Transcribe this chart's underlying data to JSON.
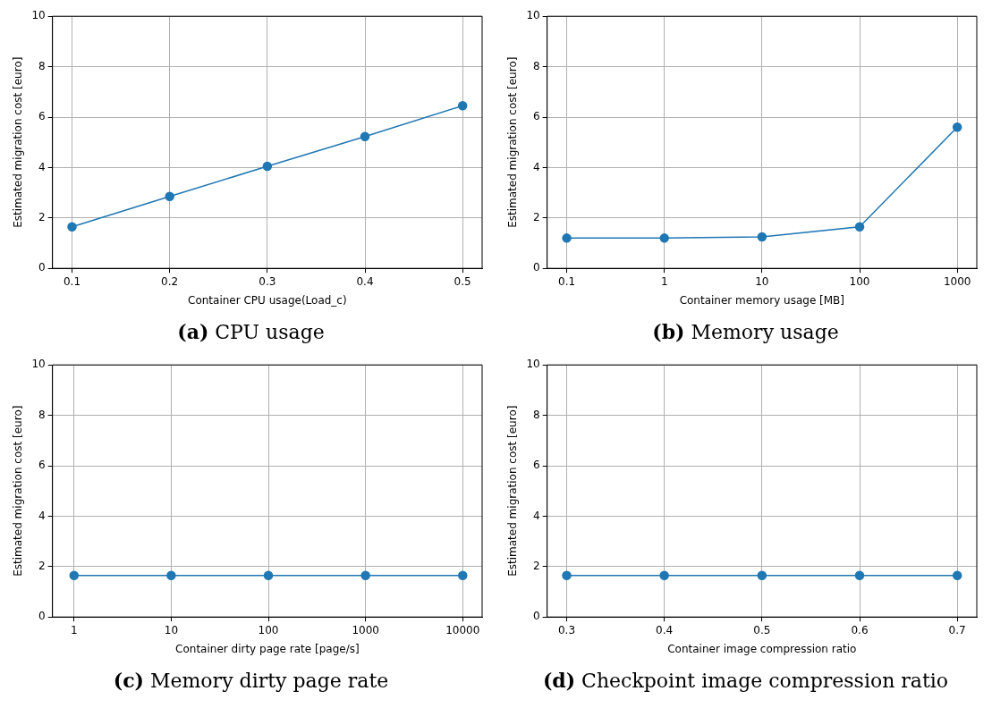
{
  "chart_data": [
    {
      "type": "line",
      "x": [
        0.1,
        0.2,
        0.3,
        0.4,
        0.5
      ],
      "values": [
        1.65,
        2.85,
        4.05,
        5.23,
        6.45
      ],
      "color": "#1f77b4",
      "marker": "circle",
      "xlabel": "Container CPU usage(Load_c)",
      "ylabel": "Estimated migration cost [euro]",
      "xlim": [
        0.08,
        0.52
      ],
      "xticks": [
        0.1,
        0.2,
        0.3,
        0.4,
        0.5
      ],
      "ylim": [
        0,
        10
      ],
      "yticks": [
        0,
        2,
        4,
        6,
        8,
        10
      ],
      "grid": true,
      "legend": false,
      "annotations": [
        "(a) CPU usage"
      ]
    },
    {
      "type": "line",
      "x": [
        0.1,
        1,
        10,
        100,
        1000
      ],
      "values": [
        1.2,
        1.2,
        1.25,
        1.65,
        5.6
      ],
      "color": "#1f77b4",
      "marker": "circle",
      "log": "x",
      "xlabel": "Container memory usage [MB]",
      "ylabel": "Estimated migration cost [euro]",
      "xlim": [
        0.063,
        1585
      ],
      "xticks": [
        0.1,
        1,
        10,
        100,
        1000
      ],
      "ylim": [
        0,
        10
      ],
      "yticks": [
        0,
        2,
        4,
        6,
        8,
        10
      ],
      "grid": true,
      "legend": false,
      "annotations": [
        "(b) Memory usage"
      ]
    },
    {
      "type": "line",
      "x": [
        1,
        10,
        100,
        1000,
        10000
      ],
      "values": [
        1.65,
        1.65,
        1.65,
        1.65,
        1.65
      ],
      "color": "#1f77b4",
      "marker": "circle",
      "log": "x",
      "xlabel": "Container dirty page rate [page/s]",
      "ylabel": "Estimated migration cost [euro]",
      "xlim": [
        0.63,
        15850
      ],
      "xticks": [
        1,
        10,
        100,
        1000,
        10000
      ],
      "ylim": [
        0,
        10
      ],
      "yticks": [
        0,
        2,
        4,
        6,
        8,
        10
      ],
      "grid": true,
      "legend": false,
      "annotations": [
        "(c) Memory dirty page rate"
      ]
    },
    {
      "type": "line",
      "x": [
        0.3,
        0.4,
        0.5,
        0.6,
        0.7
      ],
      "values": [
        1.65,
        1.65,
        1.65,
        1.65,
        1.65
      ],
      "color": "#1f77b4",
      "marker": "circle",
      "xlabel": "Container image compression ratio",
      "ylabel": "Estimated migration cost [euro]",
      "xlim": [
        0.28,
        0.72
      ],
      "xticks": [
        0.3,
        0.4,
        0.5,
        0.6,
        0.7
      ],
      "ylim": [
        0,
        10
      ],
      "yticks": [
        0,
        2,
        4,
        6,
        8,
        10
      ],
      "grid": true,
      "legend": false,
      "annotations": [
        "(d) Checkpoint image compression ratio"
      ]
    }
  ]
}
